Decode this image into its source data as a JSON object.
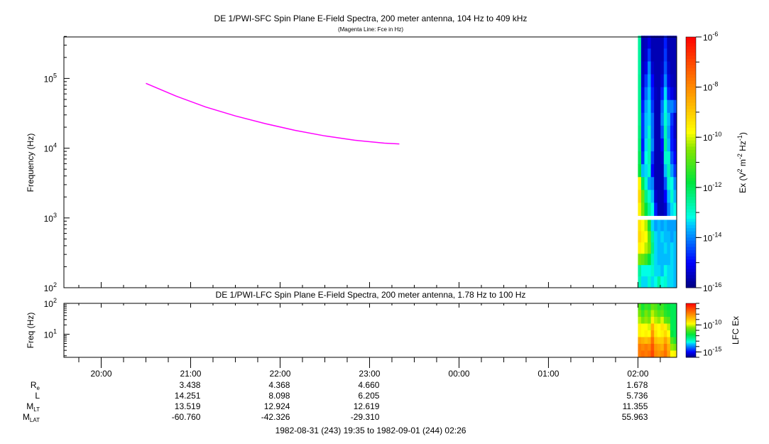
{
  "chart_data": [
    {
      "type": "heatmap",
      "title": "DE 1/PWI-SFC  Spin Plane E-Field Spectra, 200 meter antenna, 104 Hz to 409 kHz",
      "subtitle": "(Magenta Line: Fce in Hz)",
      "ylabel": "Frequency (Hz)",
      "yscale": "log",
      "ylim": [
        100,
        409000
      ],
      "yticks": [
        {
          "exp": "2"
        },
        {
          "exp": "3"
        },
        {
          "exp": "4"
        },
        {
          "exp": "5"
        }
      ],
      "xlim_minutes_from_start": [
        0,
        411
      ],
      "colorbar": {
        "label_main": "Ex (V",
        "label_sup1": "2",
        "label_mid": " m",
        "label_sup2": "-2",
        "label_mid2": " Hz",
        "label_sup3": "-1",
        "label_end": ")",
        "scale": "log",
        "range_log10": [
          -16,
          -6
        ],
        "ticks": [
          {
            "exp": "-6"
          },
          {
            "exp": "-8"
          },
          {
            "exp": "-10"
          },
          {
            "exp": "-12"
          },
          {
            "exp": "-14"
          },
          {
            "exp": "-16"
          }
        ]
      },
      "fce_line": {
        "color": "#ff00ff",
        "times": [
          "20:30",
          "20:50",
          "21:10",
          "21:30",
          "21:50",
          "22:10",
          "22:30",
          "22:50",
          "23:10",
          "23:20"
        ],
        "values_hz": [
          85000,
          56000,
          39000,
          29000,
          22500,
          18000,
          15000,
          13000,
          11800,
          11500
        ]
      },
      "spectrogram": {
        "time_range": [
          "02:00",
          "02:26"
        ],
        "gap_hz": [
          940,
          1080
        ],
        "upper_freq_range_hz": [
          1080,
          409000
        ],
        "lower_freq_range_hz": [
          100,
          940
        ],
        "upper_log10_ex_rows_high_to_low": [
          [
            -12.6,
            -15.6,
            -15.5,
            -15.2,
            -15.6,
            -15.6,
            -15.6,
            -15.6,
            -14.8,
            -15.6,
            -15.6,
            -15.6
          ],
          [
            -12.6,
            -15.6,
            -15.4,
            -14.6,
            -15.6,
            -15.6,
            -15.6,
            -15.6,
            -14.6,
            -15.6,
            -15.6,
            -15.6
          ],
          [
            -12.6,
            -15.5,
            -15.2,
            -14.0,
            -15.4,
            -15.6,
            -15.6,
            -15.5,
            -14.4,
            -15.4,
            -15.6,
            -15.6
          ],
          [
            -12.5,
            -15.4,
            -14.6,
            -13.8,
            -15.0,
            -15.6,
            -15.6,
            -15.3,
            -14.0,
            -15.2,
            -15.5,
            -15.6
          ],
          [
            -12.5,
            -15.2,
            -14.2,
            -13.6,
            -14.8,
            -15.5,
            -15.6,
            -14.8,
            -13.4,
            -14.8,
            -15.2,
            -15.5
          ],
          [
            -12.4,
            -14.8,
            -13.8,
            -13.4,
            -14.6,
            -15.6,
            -15.6,
            -14.2,
            -13.2,
            -14.0,
            -14.0,
            -14.4
          ],
          [
            -12.4,
            -14.6,
            -13.6,
            -13.4,
            -14.2,
            -15.6,
            -15.6,
            -14.0,
            -13.0,
            -13.6,
            -14.6,
            -15.4
          ],
          [
            -12.3,
            -14.6,
            -13.6,
            -13.0,
            -14.2,
            -15.6,
            -15.6,
            -14.4,
            -12.8,
            -13.8,
            -14.8,
            -15.4
          ],
          [
            -12.2,
            -14.8,
            -13.4,
            -12.8,
            -14.0,
            -15.6,
            -15.6,
            -15.0,
            -12.6,
            -13.6,
            -14.8,
            -15.2
          ],
          [
            -12.0,
            -14.6,
            -13.2,
            -12.8,
            -14.6,
            -15.6,
            -15.6,
            -15.4,
            -13.0,
            -13.0,
            -14.4,
            -15.0
          ],
          [
            -11.8,
            -13.6,
            -13.4,
            -13.0,
            -15.0,
            -15.6,
            -15.6,
            -15.6,
            -13.6,
            -12.8,
            -13.8,
            -14.6
          ],
          [
            -9.6,
            -12.0,
            -13.0,
            -13.8,
            -14.0,
            -15.6,
            -15.6,
            -15.6,
            -14.4,
            -13.0,
            -13.2,
            -14.0
          ],
          [
            -9.2,
            -10.8,
            -12.4,
            -13.0,
            -13.6,
            -15.4,
            -15.6,
            -15.6,
            -15.0,
            -13.6,
            -13.0,
            -13.6
          ],
          [
            -9.6,
            -10.6,
            -11.8,
            -12.6,
            -13.2,
            -14.8,
            -15.6,
            -15.6,
            -15.4,
            -14.0,
            -13.4,
            -13.2
          ]
        ],
        "lower_log10_ex_rows_high_to_low": [
          [
            -9.4,
            -9.8,
            -10.2,
            -11.6,
            -13.4,
            -13.8,
            -13.6,
            -13.8,
            -13.6,
            -13.8,
            -13.8,
            -13.8
          ],
          [
            -9.2,
            -9.6,
            -9.8,
            -10.8,
            -12.6,
            -13.4,
            -13.6,
            -13.4,
            -13.6,
            -13.6,
            -13.8,
            -13.6
          ],
          [
            -9.6,
            -9.8,
            -10.2,
            -10.6,
            -12.4,
            -13.4,
            -13.6,
            -13.6,
            -13.4,
            -13.6,
            -13.4,
            -13.6
          ],
          [
            -10.6,
            -10.8,
            -11.2,
            -11.8,
            -12.8,
            -13.4,
            -13.6,
            -13.6,
            -13.6,
            -13.6,
            -13.4,
            -13.6
          ],
          [
            -12.6,
            -13.2,
            -13.2,
            -13.2,
            -13.0,
            -13.4,
            -13.4,
            -13.6,
            -13.2,
            -13.4,
            -13.4,
            -13.6
          ],
          [
            -12.8,
            -13.4,
            -13.4,
            -13.0,
            -13.4,
            -13.2,
            -12.6,
            -13.2,
            -13.0,
            -13.4,
            -13.4,
            -13.6
          ]
        ]
      }
    },
    {
      "type": "heatmap",
      "title": "DE 1/PWI-LFC  Spin Plane E-Field Spectra, 200 meter antenna, 1.78 Hz to 100 Hz",
      "ylabel": "Freq (Hz)",
      "yscale": "log",
      "ylim": [
        1.78,
        100
      ],
      "yticks": [
        {
          "exp": "1"
        },
        {
          "exp": "2"
        }
      ],
      "colorbar": {
        "label": "LFC Ex",
        "scale": "log",
        "range_log10": [
          -16,
          -6
        ],
        "ticks": [
          {
            "exp": "-10"
          },
          {
            "exp": "-15"
          }
        ]
      },
      "spectrogram": {
        "time_range": [
          "02:00",
          "02:26"
        ],
        "log10_ex_rows_high_to_low": [
          [
            -11.0,
            -11.6,
            -11.2,
            -11.4,
            -10.8,
            -11.0,
            -11.4,
            -11.2,
            -11.6,
            -11.8,
            -12.0,
            -12.0
          ],
          [
            -10.6,
            -11.2,
            -10.6,
            -11.0,
            -10.2,
            -10.6,
            -11.0,
            -10.8,
            -11.4,
            -11.6,
            -12.0,
            -12.0
          ],
          [
            -10.2,
            -10.6,
            -10.4,
            -10.6,
            -9.6,
            -10.2,
            -10.4,
            -10.0,
            -10.8,
            -11.0,
            -12.0,
            -12.0
          ],
          [
            -9.6,
            -9.8,
            -9.8,
            -10.0,
            -8.6,
            -9.6,
            -9.8,
            -9.4,
            -9.6,
            -10.2,
            -12.0,
            -12.0
          ],
          [
            -9.6,
            -9.8,
            -9.6,
            -9.8,
            -8.2,
            -9.4,
            -9.8,
            -9.6,
            -9.2,
            -9.8,
            -11.8,
            -12.0
          ],
          [
            -8.4,
            -8.6,
            -8.8,
            -8.6,
            -7.6,
            -8.8,
            -9.0,
            -9.0,
            -8.4,
            -9.0,
            -11.0,
            -11.4
          ],
          [
            -7.8,
            -8.0,
            -7.8,
            -8.0,
            -7.2,
            -8.2,
            -8.4,
            -8.6,
            -7.8,
            -8.6,
            -10.4,
            -10.6
          ],
          [
            -7.8,
            -7.6,
            -7.8,
            -7.6,
            -7.0,
            -8.0,
            -8.2,
            -8.0,
            -7.6,
            -8.4,
            -9.8,
            -9.6
          ]
        ]
      }
    }
  ],
  "time_axis": {
    "labels": [
      "20:00",
      "21:00",
      "22:00",
      "23:00",
      "00:00",
      "01:00",
      "02:00"
    ]
  },
  "ephemeris": {
    "rows": [
      {
        "label": "R",
        "sub": "e",
        "values": [
          "",
          "3.438",
          "4.368",
          "4.660",
          "",
          "",
          "1.678"
        ]
      },
      {
        "label": "L",
        "sub": "",
        "values": [
          "",
          "14.251",
          "8.098",
          "6.205",
          "",
          "",
          "5.736"
        ]
      },
      {
        "label": "M",
        "sub": "LT",
        "values": [
          "",
          "13.519",
          "12.924",
          "12.619",
          "",
          "",
          "11.355"
        ]
      },
      {
        "label": "M",
        "sub": "LAT",
        "values": [
          "",
          "-60.760",
          "-42.326",
          "-29.310",
          "",
          "",
          "55.963"
        ]
      }
    ],
    "range_text": "1982-08-31 (243) 19:35 to 1982-09-01 (244) 02:26"
  }
}
